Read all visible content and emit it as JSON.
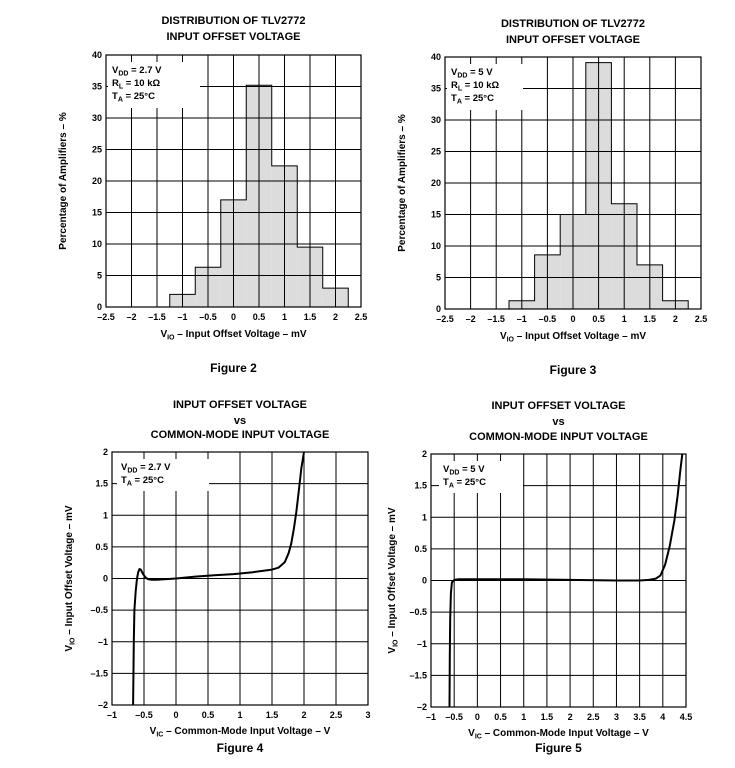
{
  "chart_data": [
    {
      "type": "bar",
      "figure_label": "Figure 2",
      "title_line1": "DISTRIBUTION OF TLV2772",
      "title_line2": "INPUT OFFSET VOLTAGE",
      "ylabel": "Percentage of Amplifiers – %",
      "xlabel_main": "V",
      "xlabel_sub": "IO",
      "xlabel_rest": " – Input Offset Voltage – mV",
      "xlim": [
        -2.5,
        2.5
      ],
      "ylim": [
        0,
        40
      ],
      "xticks": [
        -2.5,
        -2,
        -1.5,
        -1,
        -0.5,
        0,
        0.5,
        1,
        1.5,
        2,
        2.5
      ],
      "xtick_labels": [
        "–2.5",
        "–2",
        "–1.5",
        "–1",
        "–0.5",
        "0",
        "0.5",
        "1",
        "1.5",
        "2",
        "2.5"
      ],
      "yticks": [
        0,
        5,
        10,
        15,
        20,
        25,
        30,
        35,
        40
      ],
      "ytick_labels": [
        "0",
        "5",
        "10",
        "15",
        "20",
        "25",
        "30",
        "35",
        "40"
      ],
      "bins": [
        {
          "start": -1.25,
          "end": -0.75,
          "value": 2
        },
        {
          "start": -0.75,
          "end": -0.25,
          "value": 6.3
        },
        {
          "start": -0.25,
          "end": 0.25,
          "value": 17
        },
        {
          "start": 0.25,
          "end": 0.75,
          "value": 35.2
        },
        {
          "start": 0.75,
          "end": 1.25,
          "value": 22.4
        },
        {
          "start": 1.25,
          "end": 1.75,
          "value": 9.5
        },
        {
          "start": 1.75,
          "end": 2.25,
          "value": 3
        }
      ],
      "conditions": [
        {
          "main": "V",
          "sub": "DD",
          "rest": " = 2.7 V"
        },
        {
          "main": "R",
          "sub": "L",
          "rest": " = 10 kΩ"
        },
        {
          "main": "T",
          "sub": "A",
          "rest": " = 25°C"
        }
      ]
    },
    {
      "type": "bar",
      "figure_label": "Figure 3",
      "title_line1": "DISTRIBUTION OF TLV2772",
      "title_line2": "INPUT OFFSET VOLTAGE",
      "ylabel": "Percentage of Amplifiers – %",
      "xlabel_main": "V",
      "xlabel_sub": "IO",
      "xlabel_rest": " – Input Offset Voltage – mV",
      "xlim": [
        -2.5,
        2.5
      ],
      "ylim": [
        0,
        40
      ],
      "xticks": [
        -2.5,
        -2,
        -1.5,
        -1,
        -0.5,
        0,
        0.5,
        1,
        1.5,
        2,
        2.5
      ],
      "xtick_labels": [
        "–2.5",
        "–2",
        "–1.5",
        "–1",
        "–0.5",
        "0",
        "0.5",
        "1",
        "1.5",
        "2",
        "2.5"
      ],
      "yticks": [
        0,
        5,
        10,
        15,
        20,
        25,
        30,
        35,
        40
      ],
      "ytick_labels": [
        "0",
        "5",
        "10",
        "15",
        "20",
        "25",
        "30",
        "35",
        "40"
      ],
      "bins": [
        {
          "start": -1.25,
          "end": -0.75,
          "value": 1.3
        },
        {
          "start": -0.75,
          "end": -0.25,
          "value": 8.6
        },
        {
          "start": -0.25,
          "end": 0.25,
          "value": 15
        },
        {
          "start": 0.25,
          "end": 0.75,
          "value": 39.1
        },
        {
          "start": 0.75,
          "end": 1.25,
          "value": 16.7
        },
        {
          "start": 1.25,
          "end": 1.75,
          "value": 7
        },
        {
          "start": 1.75,
          "end": 2.25,
          "value": 1.3
        }
      ],
      "conditions": [
        {
          "main": "V",
          "sub": "DD",
          "rest": " = 5 V"
        },
        {
          "main": "R",
          "sub": "L",
          "rest": " = 10 kΩ"
        },
        {
          "main": "T",
          "sub": "A",
          "rest": " = 25°C"
        }
      ]
    },
    {
      "type": "line",
      "figure_label": "Figure 4",
      "title_line1": "INPUT OFFSET VOLTAGE",
      "title_line2": "vs",
      "title_line3": "COMMON-MODE INPUT VOLTAGE",
      "ylabel_main": "V",
      "ylabel_sub": "IO",
      "ylabel_rest": " – Input Offset Voltage – mV",
      "xlabel_main": "V",
      "xlabel_sub": "IC",
      "xlabel_rest": " – Common-Mode Input Voltage – V",
      "xlim": [
        -1,
        3
      ],
      "ylim": [
        -2,
        2
      ],
      "xticks": [
        -1,
        -0.5,
        0,
        0.5,
        1,
        1.5,
        2,
        2.5,
        3
      ],
      "xtick_labels": [
        "–1",
        "–0.5",
        "0",
        "0.5",
        "1",
        "1.5",
        "2",
        "2.5",
        "3"
      ],
      "yticks": [
        -2,
        -1.5,
        -1,
        -0.5,
        0,
        0.5,
        1,
        1.5,
        2
      ],
      "ytick_labels": [
        "–2",
        "–1.5",
        "–1",
        "–0.5",
        "0",
        "0.5",
        "1",
        "1.5",
        "2"
      ],
      "series": [
        {
          "name": "VIO",
          "x": [
            -0.67,
            -0.66,
            -0.65,
            -0.63,
            -0.61,
            -0.59,
            -0.57,
            -0.55,
            -0.52,
            -0.48,
            -0.44,
            -0.38,
            -0.3,
            -0.15,
            0,
            0.3,
            0.6,
            0.9,
            1.2,
            1.5,
            1.6,
            1.7,
            1.76,
            1.8,
            1.84,
            1.88,
            1.92,
            1.96,
            2.0
          ],
          "y": [
            -2.0,
            -1.0,
            -0.5,
            -0.2,
            0.0,
            0.1,
            0.15,
            0.14,
            0.08,
            0.02,
            -0.01,
            -0.02,
            -0.02,
            -0.01,
            0.0,
            0.03,
            0.05,
            0.07,
            0.1,
            0.14,
            0.17,
            0.26,
            0.4,
            0.55,
            0.78,
            1.05,
            1.4,
            1.75,
            2.0
          ]
        }
      ],
      "conditions": [
        {
          "main": "V",
          "sub": "DD",
          "rest": " = 2.7 V"
        },
        {
          "main": "T",
          "sub": "A",
          "rest": " = 25°C"
        }
      ]
    },
    {
      "type": "line",
      "figure_label": "Figure 5",
      "title_line1": "INPUT OFFSET VOLTAGE",
      "title_line2": "vs",
      "title_line3": "COMMON-MODE INPUT VOLTAGE",
      "ylabel_main": "V",
      "ylabel_sub": "IO",
      "ylabel_rest": " – Input Offset Voltage – mV",
      "xlabel_main": "V",
      "xlabel_sub": "IC",
      "xlabel_rest": " – Common-Mode Input Voltage – V",
      "xlim": [
        -1,
        4.5
      ],
      "ylim": [
        -2,
        2
      ],
      "xticks": [
        -1,
        -0.5,
        0,
        0.5,
        1,
        1.5,
        2,
        2.5,
        3,
        3.5,
        4,
        4.5
      ],
      "xtick_labels": [
        "–1",
        "–0.5",
        "0",
        "0.5",
        "1",
        "1.5",
        "2",
        "2.5",
        "3",
        "3.5",
        "4",
        "4.5"
      ],
      "yticks": [
        -2,
        -1.5,
        -1,
        -0.5,
        0,
        0.5,
        1,
        1.5,
        2
      ],
      "ytick_labels": [
        "–2",
        "–1.5",
        "–1",
        "–0.5",
        "0",
        "0.5",
        "1",
        "1.5",
        "2"
      ],
      "series": [
        {
          "name": "VIO",
          "x": [
            -0.6,
            -0.595,
            -0.585,
            -0.57,
            -0.55,
            -0.5,
            -0.4,
            0,
            1,
            2,
            3,
            3.5,
            3.7,
            3.85,
            3.95,
            4.05,
            4.15,
            4.25,
            4.32,
            4.38,
            4.42
          ],
          "y": [
            -2.0,
            -1.2,
            -0.6,
            -0.2,
            -0.03,
            0.01,
            0.02,
            0.02,
            0.02,
            0.01,
            0.0,
            0.0,
            0.01,
            0.03,
            0.08,
            0.25,
            0.55,
            0.95,
            1.35,
            1.75,
            2.0
          ]
        }
      ],
      "conditions": [
        {
          "main": "V",
          "sub": "DD",
          "rest": " = 5 V"
        },
        {
          "main": "T",
          "sub": "A",
          "rest": " = 25°C"
        }
      ]
    }
  ]
}
